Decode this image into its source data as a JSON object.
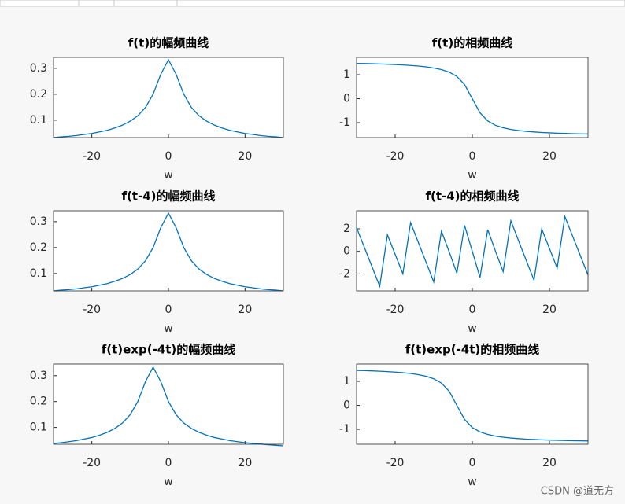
{
  "chart_data": [
    {
      "type": "line",
      "title": "f(t)的幅频曲线",
      "xlabel": "w",
      "x": [
        -30,
        -28,
        -26,
        -24,
        -22,
        -20,
        -18,
        -16,
        -14,
        -12,
        -10,
        -8,
        -6,
        -4,
        -2,
        0,
        2,
        4,
        6,
        8,
        10,
        12,
        14,
        16,
        18,
        20,
        22,
        24,
        26,
        28,
        30
      ],
      "values": [
        0.033,
        0.036,
        0.038,
        0.041,
        0.045,
        0.049,
        0.055,
        0.061,
        0.07,
        0.081,
        0.096,
        0.117,
        0.149,
        0.2,
        0.277,
        0.333,
        0.277,
        0.2,
        0.149,
        0.117,
        0.096,
        0.081,
        0.07,
        0.061,
        0.055,
        0.049,
        0.045,
        0.041,
        0.038,
        0.036,
        0.033
      ],
      "color": "#0072bd",
      "xlim": [
        -30,
        30
      ],
      "ylim": [
        0.033,
        0.342
      ],
      "xticks": [
        -20,
        0,
        20
      ],
      "yticks": [
        0.1,
        0.2,
        0.3
      ]
    },
    {
      "type": "line",
      "title": "f(t)的相频曲线",
      "xlabel": "w",
      "x": [
        -30,
        -28,
        -26,
        -24,
        -22,
        -20,
        -18,
        -16,
        -14,
        -12,
        -10,
        -8,
        -6,
        -4,
        -2,
        0,
        2,
        4,
        6,
        8,
        10,
        12,
        14,
        16,
        18,
        20,
        22,
        24,
        26,
        28,
        30
      ],
      "values": [
        1.471,
        1.464,
        1.456,
        1.446,
        1.435,
        1.422,
        1.406,
        1.385,
        1.36,
        1.326,
        1.279,
        1.212,
        1.107,
        0.927,
        0.588,
        0,
        -0.588,
        -0.927,
        -1.107,
        -1.212,
        -1.279,
        -1.326,
        -1.36,
        -1.385,
        -1.406,
        -1.422,
        -1.435,
        -1.446,
        -1.456,
        -1.464,
        -1.471
      ],
      "color": "#0072bd",
      "xlim": [
        -30,
        30
      ],
      "ylim": [
        -1.62,
        1.72
      ],
      "xticks": [
        -20,
        0,
        20
      ],
      "yticks": [
        -1,
        0,
        1
      ]
    },
    {
      "type": "line",
      "title": "f(t-4)的幅频曲线",
      "xlabel": "w",
      "x": [
        -30,
        -28,
        -26,
        -24,
        -22,
        -20,
        -18,
        -16,
        -14,
        -12,
        -10,
        -8,
        -6,
        -4,
        -2,
        0,
        2,
        4,
        6,
        8,
        10,
        12,
        14,
        16,
        18,
        20,
        22,
        24,
        26,
        28,
        30
      ],
      "values": [
        0.033,
        0.036,
        0.038,
        0.041,
        0.045,
        0.049,
        0.055,
        0.061,
        0.07,
        0.081,
        0.096,
        0.117,
        0.149,
        0.2,
        0.277,
        0.333,
        0.277,
        0.2,
        0.149,
        0.117,
        0.096,
        0.081,
        0.07,
        0.061,
        0.055,
        0.049,
        0.045,
        0.041,
        0.038,
        0.036,
        0.033
      ],
      "color": "#0072bd",
      "xlim": [
        -30,
        30
      ],
      "ylim": [
        0.033,
        0.342
      ],
      "xticks": [
        -20,
        0,
        20
      ],
      "yticks": [
        0.1,
        0.2,
        0.3
      ]
    },
    {
      "type": "line",
      "title": "f(t-4)的相频曲线",
      "xlabel": "w",
      "x": [
        -30,
        -28,
        -26,
        -24,
        -22,
        -20,
        -18,
        -16,
        -14,
        -12,
        -10,
        -8,
        -6,
        -4,
        -2,
        0,
        2,
        4,
        6,
        8,
        10,
        12,
        14,
        16,
        18,
        20,
        22,
        24,
        26,
        28,
        30
      ],
      "values": [
        2.09,
        0.37,
        -1.36,
        -3.09,
        1.47,
        -0.26,
        -1.99,
        2.55,
        0.81,
        -0.94,
        -2.71,
        1.79,
        -0.03,
        -1.93,
        2.3,
        0,
        -2.3,
        1.93,
        0.03,
        -1.79,
        2.71,
        0.94,
        -0.81,
        -2.55,
        1.99,
        0.26,
        -1.47,
        3.09,
        1.36,
        -0.37,
        -2.09
      ],
      "color": "#0072bd",
      "xlim": [
        -30,
        30
      ],
      "ylim": [
        -3.5,
        3.6
      ],
      "xticks": [
        -20,
        0,
        20
      ],
      "yticks": [
        -2,
        0,
        2
      ]
    },
    {
      "type": "line",
      "title": "f(t)exp(-4t)的幅频曲线",
      "xlabel": "w",
      "x": [
        -30,
        -28,
        -26,
        -24,
        -22,
        -20,
        -18,
        -16,
        -14,
        -12,
        -10,
        -8,
        -6,
        -4,
        -2,
        0,
        2,
        4,
        6,
        8,
        10,
        12,
        14,
        16,
        18,
        20,
        22,
        24,
        26,
        28,
        30
      ],
      "values": [
        0.038,
        0.041,
        0.045,
        0.049,
        0.055,
        0.061,
        0.07,
        0.081,
        0.096,
        0.117,
        0.149,
        0.2,
        0.277,
        0.333,
        0.277,
        0.2,
        0.149,
        0.117,
        0.096,
        0.081,
        0.07,
        0.061,
        0.055,
        0.049,
        0.045,
        0.041,
        0.038,
        0.036,
        0.033,
        0.031,
        0.029
      ],
      "color": "#0072bd",
      "xlim": [
        -30,
        30
      ],
      "ylim": [
        0.035,
        0.345
      ],
      "xticks": [
        -20,
        0,
        20
      ],
      "yticks": [
        0.1,
        0.2,
        0.3
      ]
    },
    {
      "type": "line",
      "title": "f(t)exp(-4t)的相频曲线",
      "xlabel": "w",
      "x": [
        -30,
        -28,
        -26,
        -24,
        -22,
        -20,
        -18,
        -16,
        -14,
        -12,
        -10,
        -8,
        -6,
        -4,
        -2,
        0,
        2,
        4,
        6,
        8,
        10,
        12,
        14,
        16,
        18,
        20,
        22,
        24,
        26,
        28,
        30
      ],
      "values": [
        1.456,
        1.446,
        1.435,
        1.422,
        1.406,
        1.385,
        1.36,
        1.326,
        1.279,
        1.212,
        1.107,
        0.927,
        0.588,
        0,
        -0.588,
        -0.927,
        -1.107,
        -1.212,
        -1.279,
        -1.326,
        -1.36,
        -1.385,
        -1.406,
        -1.422,
        -1.435,
        -1.446,
        -1.456,
        -1.464,
        -1.471,
        -1.477,
        -1.483
      ],
      "color": "#0072bd",
      "xlim": [
        -30,
        30
      ],
      "ylim": [
        -1.62,
        1.72
      ],
      "xticks": [
        -20,
        0,
        20
      ],
      "yticks": [
        -1,
        0,
        1
      ]
    }
  ],
  "watermark": "CSDN @道无方"
}
